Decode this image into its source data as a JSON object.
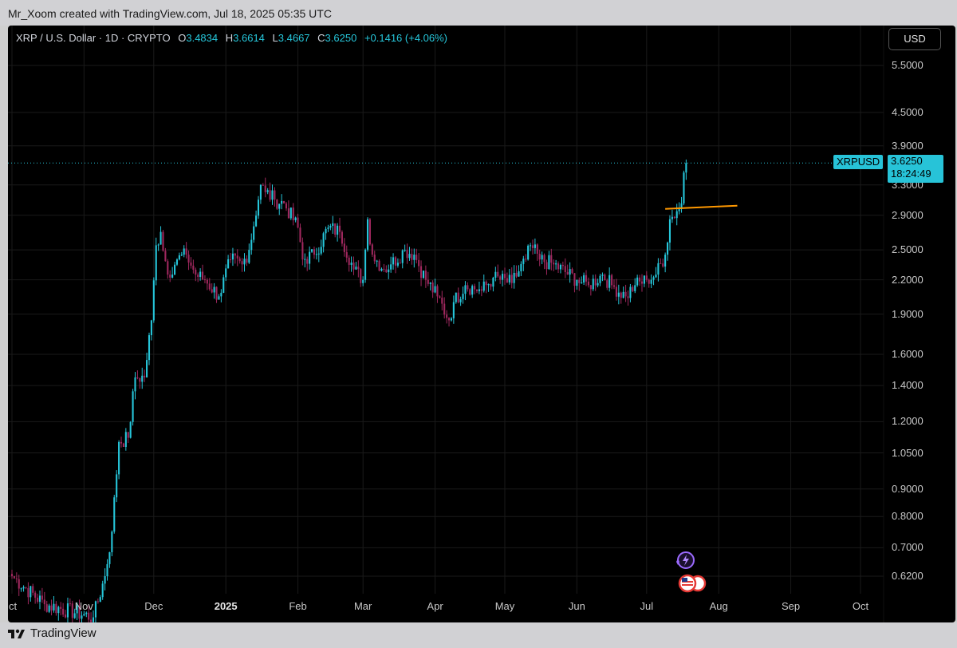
{
  "header": {
    "credit": "Mr_Xoom created with TradingView.com, Jul 18, 2025 05:35 UTC"
  },
  "legend": {
    "symbol": "XRP / U.S. Dollar · 1D · CRYPTO",
    "o_label": "O",
    "o": "3.4834",
    "h_label": "H",
    "h": "3.6614",
    "l_label": "L",
    "l": "3.4667",
    "c_label": "C",
    "c": "3.6250",
    "change": "+0.1416 (+4.06%)"
  },
  "currency": "USD",
  "price_tag": {
    "symbol": "XRPUSD",
    "price": "3.6250",
    "countdown": "18:24:49"
  },
  "footer": {
    "brand": "TradingView"
  },
  "colors": {
    "up": "#26c6da",
    "down": "#a0285e",
    "background": "#000000",
    "hline": "#ff9800"
  },
  "icons": [
    "lightning-event-icon",
    "us-flag-event-icon"
  ],
  "chart_data": {
    "type": "candlestick",
    "y_scale": "log",
    "ylim": [
      0.57,
      6.2
    ],
    "y_ticks": [
      "5.5000",
      "4.5000",
      "3.9000",
      "3.3000",
      "2.9000",
      "2.5000",
      "2.2000",
      "1.9000",
      "1.6000",
      "1.4000",
      "1.2000",
      "1.0500",
      "0.9000",
      "0.8000",
      "0.7000",
      "0.6200"
    ],
    "x_ticks": [
      "ct",
      "Nov",
      "Dec",
      "2025",
      "Feb",
      "Mar",
      "Apr",
      "May",
      "Jun",
      "Jul",
      "Aug",
      "Sep",
      "Oct"
    ],
    "x_tick_dates": [
      "2024-10-01",
      "2024-11-01",
      "2024-12-01",
      "2025-01-01",
      "2025-02-01",
      "2025-03-01",
      "2025-04-01",
      "2025-05-01",
      "2025-06-01",
      "2025-07-01",
      "2025-08-01",
      "2025-09-01",
      "2025-10-01"
    ],
    "close_series": [
      [
        "2024-10-01",
        0.62
      ],
      [
        "2024-10-15",
        0.55
      ],
      [
        "2024-11-05",
        0.52
      ],
      [
        "2024-11-10",
        0.62
      ],
      [
        "2024-11-13",
        0.75
      ],
      [
        "2024-11-16",
        1.1
      ],
      [
        "2024-11-20",
        1.12
      ],
      [
        "2024-11-23",
        1.45
      ],
      [
        "2024-11-27",
        1.45
      ],
      [
        "2024-11-30",
        1.85
      ],
      [
        "2024-12-02",
        2.55
      ],
      [
        "2024-12-04",
        2.7
      ],
      [
        "2024-12-07",
        2.25
      ],
      [
        "2024-12-11",
        2.4
      ],
      [
        "2024-12-15",
        2.45
      ],
      [
        "2024-12-19",
        2.25
      ],
      [
        "2024-12-23",
        2.2
      ],
      [
        "2024-12-29",
        2.05
      ],
      [
        "2025-01-03",
        2.4
      ],
      [
        "2025-01-08",
        2.35
      ],
      [
        "2025-01-11",
        2.5
      ],
      [
        "2025-01-16",
        3.3
      ],
      [
        "2025-01-18",
        3.2
      ],
      [
        "2025-01-22",
        3.1
      ],
      [
        "2025-01-26",
        3.05
      ],
      [
        "2025-02-01",
        2.75
      ],
      [
        "2025-02-03",
        2.4
      ],
      [
        "2025-02-08",
        2.45
      ],
      [
        "2025-02-14",
        2.75
      ],
      [
        "2025-02-19",
        2.7
      ],
      [
        "2025-02-25",
        2.3
      ],
      [
        "2025-03-01",
        2.2
      ],
      [
        "2025-03-03",
        2.85
      ],
      [
        "2025-03-05",
        2.45
      ],
      [
        "2025-03-10",
        2.3
      ],
      [
        "2025-03-13",
        2.35
      ],
      [
        "2025-03-19",
        2.5
      ],
      [
        "2025-03-23",
        2.45
      ],
      [
        "2025-03-28",
        2.2
      ],
      [
        "2025-04-02",
        2.05
      ],
      [
        "2025-04-07",
        1.85
      ],
      [
        "2025-04-09",
        2.0
      ],
      [
        "2025-04-14",
        2.15
      ],
      [
        "2025-04-21",
        2.1
      ],
      [
        "2025-04-26",
        2.22
      ],
      [
        "2025-05-04",
        2.17
      ],
      [
        "2025-05-10",
        2.4
      ],
      [
        "2025-05-12",
        2.55
      ],
      [
        "2025-05-16",
        2.4
      ],
      [
        "2025-05-22",
        2.35
      ],
      [
        "2025-06-01",
        2.2
      ],
      [
        "2025-06-06",
        2.15
      ],
      [
        "2025-06-12",
        2.25
      ],
      [
        "2025-06-16",
        2.15
      ],
      [
        "2025-06-22",
        2.05
      ],
      [
        "2025-06-26",
        2.15
      ],
      [
        "2025-07-01",
        2.2
      ],
      [
        "2025-07-05",
        2.25
      ],
      [
        "2025-07-09",
        2.45
      ],
      [
        "2025-07-11",
        2.85
      ],
      [
        "2025-07-14",
        2.95
      ],
      [
        "2025-07-16",
        3.05
      ],
      [
        "2025-07-17",
        3.48
      ],
      [
        "2025-07-18",
        3.625
      ]
    ],
    "last_price": 3.625,
    "horizontal_line": {
      "from": "2025-07-09",
      "to": "2025-08-09",
      "value": 3.0
    }
  }
}
